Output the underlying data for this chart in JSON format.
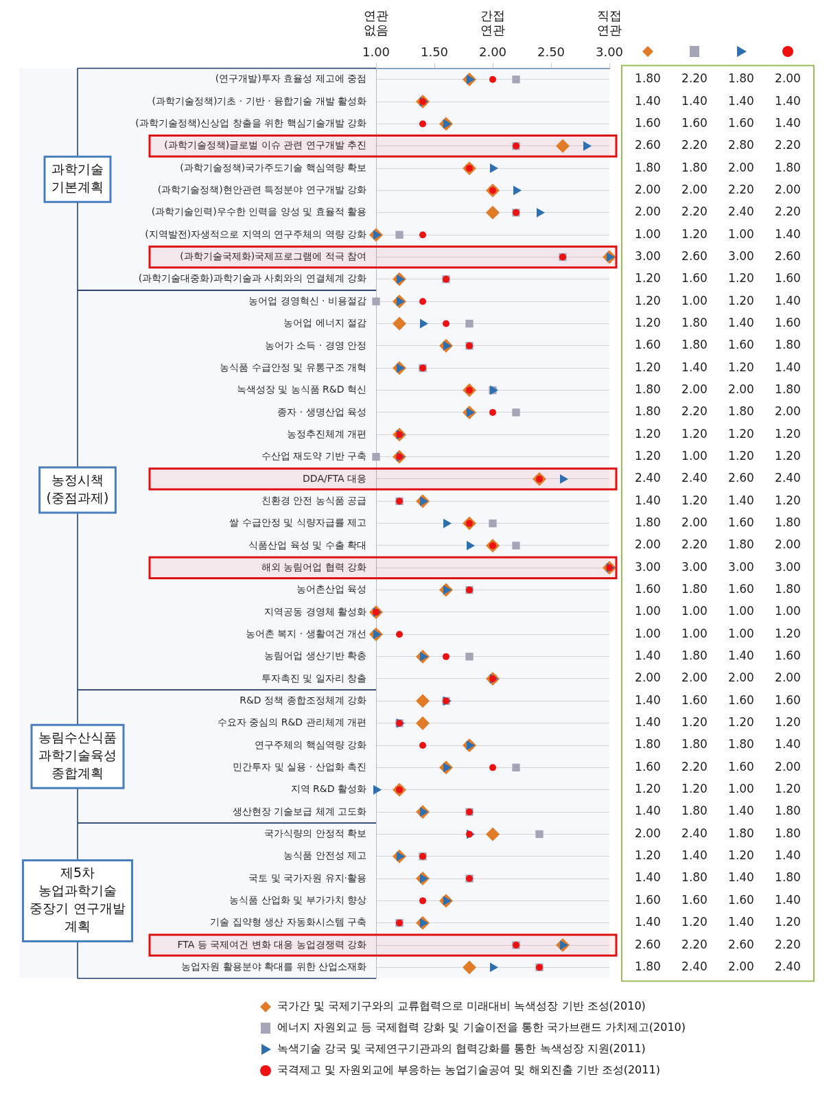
{
  "chart_data": {
    "type": "scatter",
    "categories": [
      "(연구개발)투자 효율성 제고에 중점",
      "(과학기술정책)기초 · 기반 · 융합기술 개발 활성화",
      "(과학기술정책)신상업 창출을 위한 핵심기술개발 강화",
      "(과학기술정책)글로벌 이슈 관련 연구개발 추진",
      "(과학기술정책)국가주도기술 핵심역량 확보",
      "(과학기술정책)현안관련 특정분야 연구개발 강화",
      "(과학기술인력)우수한 인력을 양성 및 효율적 활용",
      "(지역발전)자생적으로 지역의 연구주체의 역량 강화",
      "(과학기술국제화)국제프로그램에 적극 참여",
      "(과학기술대중화)과학기술과 사회와의 연결체계 강화",
      "농어업 경영혁신 · 비용절감",
      "농어업 에너지 절감",
      "농어가 소득 · 경영 안정",
      "농식품 수급안정 및 유통구조 개혁",
      "녹색성장 및 농식품 R&D 혁신",
      "종자 · 생명산업 육성",
      "농정추진체계 개편",
      "수산업 재도약 기반 구축",
      "DDA/FTA 대응",
      "친환경 안전 농식품 공급",
      "쌀 수급안정 및 식량자급률 제고",
      "식품산업 육성 및 수출 확대",
      "해외 농림어업 협력 강화",
      "농어촌산업 육성",
      "지역공동 경영체 활성화",
      "농어촌 복지 · 생활여건 개선",
      "농림어업 생산기반 확충",
      "투자촉진 및 일자리 창출",
      "R&D 정책 종합조정체계 강화",
      "수요자 중심의 R&D 관리체계 개편",
      "연구주체의 핵심역량 강화",
      "민간투자 및 실용 · 산업화 촉진",
      "지역 R&D 활성화",
      "생산현장 기술보급 체계 고도화",
      "국가식량의 안정적 확보",
      "농식품 안전성 제고",
      "국토 및 국가자원 유지·활용",
      "농식품 산업화 및 부가가치 향상",
      "기술 집약형 생산 자동화시스템 구축",
      "FTA 등 국제여건 변화 대응 농업경쟁력 강화",
      "농업자원 활용분야 확대를 위한 산업소재화"
    ],
    "series": [
      {
        "name": "국가간 및 국제기구와의 교류협력으로 미래대비 녹색성장 기반 조성(2010)",
        "color": "#e07b28",
        "marker": "diamond",
        "values": [
          1.8,
          1.4,
          1.6,
          2.6,
          1.8,
          2.0,
          2.0,
          1.0,
          3.0,
          1.2,
          1.2,
          1.2,
          1.6,
          1.2,
          1.8,
          1.8,
          1.2,
          1.2,
          2.4,
          1.4,
          1.8,
          2.0,
          3.0,
          1.6,
          1.0,
          1.0,
          1.4,
          2.0,
          1.4,
          1.4,
          1.8,
          1.6,
          1.2,
          1.4,
          2.0,
          1.2,
          1.4,
          1.6,
          1.4,
          2.6,
          1.8
        ],
        "value_labels": [
          "1.80",
          "1.40",
          "1.60",
          "2.60",
          "1.80",
          "2.00",
          "2.00",
          "1.00",
          "3.00",
          "1.20",
          "1.20",
          "1.20",
          "1.60",
          "1.20",
          "1.80",
          "1.80",
          "1.20",
          "1.20",
          "2.40",
          "1.40",
          "1.80",
          "2.00",
          "3.00",
          "1.60",
          "1.00",
          "1.00",
          "1.40",
          "2.00",
          "1.40",
          "1.40",
          "1.80",
          "1.60",
          "1.20",
          "1.40",
          "2.00",
          "1.20",
          "1.40",
          "1.60",
          "1.40",
          "2.60",
          "1.80"
        ]
      },
      {
        "name": "에너지 자원외교 등 국제협력 강화 및 기술이전을 통한 국가브랜드 가치제고(2010)",
        "color": "#a5a5b8",
        "marker": "square",
        "values": [
          2.2,
          1.4,
          1.6,
          2.2,
          1.8,
          2.0,
          2.2,
          1.2,
          2.6,
          1.6,
          1.0,
          1.8,
          1.8,
          1.4,
          2.0,
          2.2,
          1.2,
          1.0,
          2.4,
          1.2,
          2.0,
          2.2,
          3.0,
          1.8,
          1.0,
          1.0,
          1.8,
          2.0,
          1.6,
          1.2,
          1.8,
          2.2,
          1.2,
          1.8,
          2.4,
          1.4,
          1.8,
          1.6,
          1.2,
          2.2,
          2.4
        ],
        "value_labels": [
          "2.20",
          "1.40",
          "1.60",
          "2.20",
          "1.80",
          "2.00",
          "2.20",
          "1.20",
          "2.60",
          "1.60",
          "1.00",
          "1.80",
          "1.80",
          "1.40",
          "2.00",
          "2.20",
          "1.20",
          "1.00",
          "2.40",
          "1.20",
          "2.00",
          "2.20",
          "3.00",
          "1.80",
          "1.00",
          "1.00",
          "1.80",
          "2.00",
          "1.60",
          "1.20",
          "1.80",
          "2.20",
          "1.20",
          "1.80",
          "2.40",
          "1.40",
          "1.80",
          "1.60",
          "1.20",
          "2.20",
          "2.40"
        ]
      },
      {
        "name": "녹색기술 강국 및 국제연구기관과의 협력강화를 통한 녹색성장 지원(2011)",
        "color": "#2e6fb0",
        "marker": "triangle",
        "values": [
          1.8,
          1.4,
          1.6,
          2.8,
          2.0,
          2.2,
          2.4,
          1.0,
          3.0,
          1.2,
          1.2,
          1.4,
          1.6,
          1.2,
          2.0,
          1.8,
          1.2,
          1.2,
          2.6,
          1.4,
          1.6,
          1.8,
          3.0,
          1.6,
          1.0,
          1.0,
          1.4,
          2.0,
          1.6,
          1.2,
          1.8,
          1.6,
          1.0,
          1.4,
          1.8,
          1.2,
          1.4,
          1.6,
          1.4,
          2.6,
          2.0
        ],
        "value_labels": [
          "1.80",
          "1.40",
          "1.60",
          "2.80",
          "2.00",
          "2.20",
          "2.40",
          "1.00",
          "3.00",
          "1.20",
          "1.20",
          "1.40",
          "1.60",
          "1.20",
          "2.00",
          "1.80",
          "1.20",
          "1.20",
          "2.60",
          "1.40",
          "1.60",
          "1.80",
          "3.00",
          "1.60",
          "1.00",
          "1.00",
          "1.40",
          "2.00",
          "1.60",
          "1.20",
          "1.80",
          "1.60",
          "1.00",
          "1.40",
          "1.80",
          "1.20",
          "1.40",
          "1.60",
          "1.40",
          "2.60",
          "2.00"
        ]
      },
      {
        "name": "국격제고 및 자원외교에 부응하는 농업기술공여 및 해외진출 기반 조성(2011)",
        "color": "#ee1111",
        "marker": "circle",
        "values": [
          2.0,
          1.4,
          1.4,
          2.2,
          1.8,
          2.0,
          2.2,
          1.4,
          2.6,
          1.6,
          1.4,
          1.6,
          1.8,
          1.4,
          1.8,
          2.0,
          1.2,
          1.2,
          2.4,
          1.2,
          1.8,
          2.0,
          3.0,
          1.8,
          1.0,
          1.2,
          1.6,
          2.0,
          1.6,
          1.2,
          1.4,
          2.0,
          1.2,
          1.8,
          1.8,
          1.4,
          1.8,
          1.4,
          1.2,
          2.2,
          2.4
        ],
        "value_labels": [
          "2.00",
          "1.40",
          "1.40",
          "2.20",
          "1.80",
          "2.00",
          "2.20",
          "1.40",
          "2.60",
          "1.60",
          "1.40",
          "1.60",
          "1.80",
          "1.40",
          "1.80",
          "2.00",
          "1.20",
          "1.20",
          "2.40",
          "1.20",
          "1.80",
          "2.00",
          "3.00",
          "1.80",
          "1.00",
          "1.20",
          "1.60",
          "2.00",
          "1.60",
          "1.20",
          "1.40",
          "2.00",
          "1.20",
          "1.80",
          "1.80",
          "1.40",
          "1.80",
          "1.40",
          "1.20",
          "2.20",
          "2.40"
        ]
      }
    ],
    "xlim": [
      1,
      3
    ],
    "xticks": [
      {
        "value": 1,
        "label": "1.00"
      },
      {
        "value": 1.5,
        "label": "1.50"
      },
      {
        "value": 2,
        "label": "2.00"
      },
      {
        "value": 2.5,
        "label": "2.50"
      },
      {
        "value": 3,
        "label": "3.00"
      }
    ],
    "annotations": [
      "연관 없음",
      "간접 연관",
      "직접 연관"
    ],
    "bands": [
      {
        "axis": "y",
        "from": "(연구개발)투자 효율성 제고에 중점",
        "to": "(과학기술대중화)과학기술과 사회와의 연결체계 강화",
        "label": "과학기술 기본계획"
      },
      {
        "axis": "y",
        "from": "농어업 경영혁신 · 비용절감",
        "to": "투자촉진 및 일자리 창출",
        "label": "농정시책 (중점과제)"
      },
      {
        "axis": "y",
        "from": "R&D 정책 종합조정체계 강화",
        "to": "생산현장 기술보급 체계 고도화",
        "label": "농림수산식품 과학기술육성 종합계획"
      },
      {
        "axis": "y",
        "from": "국가식량의 안정적 확보",
        "to": "농업자원 활용분야 확대를 위한 산업소재화",
        "label": "제5차 농업과학기술 중장기 연구개발 계획"
      },
      {
        "axis": "y",
        "from": "(과학기술정책)글로벌 이슈 관련 연구개발 추진",
        "to": "(과학기술정책)글로벌 이슈 관련 연구개발 추진",
        "color": "#dd1111"
      },
      {
        "axis": "y",
        "from": "(과학기술국제화)국제프로그램에 적극 참여",
        "to": "(과학기술국제화)국제프로그램에 적극 참여",
        "color": "#dd1111"
      },
      {
        "axis": "y",
        "from": "DDA/FTA 대응",
        "to": "DDA/FTA 대응",
        "color": "#dd1111"
      },
      {
        "axis": "y",
        "from": "해외 농림어업 협력 강화",
        "to": "해외 농림어업 협력 강화",
        "color": "#dd1111"
      },
      {
        "axis": "y",
        "from": "FTA 등 국제여건 변화 대응 농업경쟁력 강화",
        "to": "FTA 등 국제여건 변화 대응 농업경쟁력 강화",
        "color": "#dd1111"
      }
    ],
    "orientation": "horizontal",
    "grid": "y",
    "legend": "bottom"
  }
}
